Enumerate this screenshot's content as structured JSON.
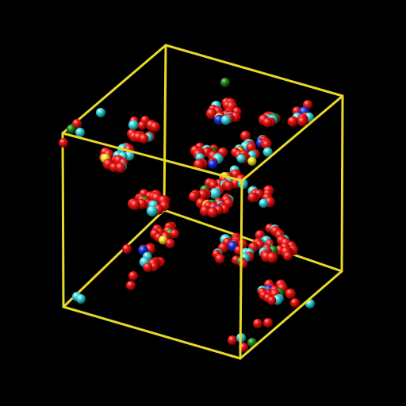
{
  "viewer": {
    "background_color": "#000000",
    "box_color": "#e6d92a",
    "element_colors": {
      "oxygen": "#e01010",
      "carbon_hydrogen": "#2ccfd6",
      "nitrogen": "#1a2fd8",
      "sulfur": "#f0e020",
      "other": "#1f8a1f"
    }
  }
}
